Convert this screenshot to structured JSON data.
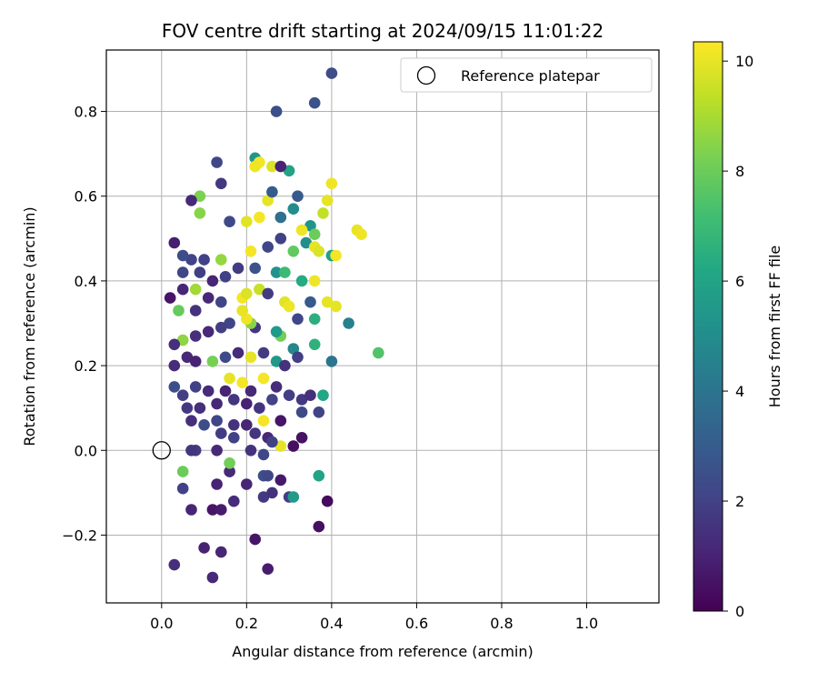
{
  "chart_data": {
    "type": "scatter",
    "title": "FOV centre drift starting at 2024/09/15 11:01:22",
    "xlabel": "Angular distance from reference (arcmin)",
    "ylabel": "Rotation from reference (arcmin)",
    "xlim": [
      -0.13,
      1.17
    ],
    "ylim": [
      -0.36,
      0.945
    ],
    "xticks": [
      0.0,
      0.2,
      0.4,
      0.6,
      0.8,
      1.0
    ],
    "xtick_labels": [
      "0.0",
      "0.2",
      "0.4",
      "0.6",
      "0.8",
      "1.0"
    ],
    "yticks": [
      -0.2,
      0.0,
      0.2,
      0.4,
      0.6,
      0.8
    ],
    "ytick_labels": [
      "−0.2",
      "0.0",
      "0.2",
      "0.4",
      "0.6",
      "0.8"
    ],
    "grid": true,
    "legend": {
      "position": "top-right",
      "entries": [
        "Reference platepar"
      ]
    },
    "reference_point": {
      "x": 0.0,
      "y": 0.0
    },
    "colorbar": {
      "label": "Hours from first FF file",
      "colormap": "viridis",
      "range": [
        0,
        10.35
      ],
      "ticks": [
        0,
        2,
        4,
        6,
        8,
        10
      ],
      "tick_labels": [
        "0",
        "2",
        "4",
        "6",
        "8",
        "10"
      ]
    },
    "points": [
      [
        0.36,
        0.82,
        2.6
      ],
      [
        0.4,
        0.89,
        2.4
      ],
      [
        0.27,
        0.8,
        2.5
      ],
      [
        0.13,
        0.68,
        2.2
      ],
      [
        0.14,
        0.63,
        1.7
      ],
      [
        0.22,
        0.69,
        5.4
      ],
      [
        0.23,
        0.68,
        10.2
      ],
      [
        0.22,
        0.67,
        10.1
      ],
      [
        0.26,
        0.67,
        9.8
      ],
      [
        0.3,
        0.66,
        6.0
      ],
      [
        0.28,
        0.67,
        1.0
      ],
      [
        0.32,
        0.6,
        2.9
      ],
      [
        0.39,
        0.59,
        10.0
      ],
      [
        0.4,
        0.63,
        10.1
      ],
      [
        0.38,
        0.56,
        9.4
      ],
      [
        0.25,
        0.59,
        10.0
      ],
      [
        0.26,
        0.61,
        3.0
      ],
      [
        0.09,
        0.6,
        8.3
      ],
      [
        0.07,
        0.59,
        1.2
      ],
      [
        0.09,
        0.56,
        8.5
      ],
      [
        0.16,
        0.54,
        2.3
      ],
      [
        0.2,
        0.54,
        9.9
      ],
      [
        0.23,
        0.55,
        10.2
      ],
      [
        0.28,
        0.55,
        3.8
      ],
      [
        0.31,
        0.57,
        5.0
      ],
      [
        0.35,
        0.53,
        5.3
      ],
      [
        0.36,
        0.51,
        8.0
      ],
      [
        0.33,
        0.52,
        10.1
      ],
      [
        0.34,
        0.49,
        5.1
      ],
      [
        0.36,
        0.48,
        10.0
      ],
      [
        0.37,
        0.47,
        9.8
      ],
      [
        0.4,
        0.46,
        5.9
      ],
      [
        0.41,
        0.46,
        10.2
      ],
      [
        0.46,
        0.52,
        10.0
      ],
      [
        0.47,
        0.51,
        10.1
      ],
      [
        0.31,
        0.47,
        7.8
      ],
      [
        0.28,
        0.5,
        2.0
      ],
      [
        0.25,
        0.48,
        2.2
      ],
      [
        0.21,
        0.47,
        10.2
      ],
      [
        0.14,
        0.45,
        8.7
      ],
      [
        0.1,
        0.45,
        2.0
      ],
      [
        0.07,
        0.45,
        2.1
      ],
      [
        0.03,
        0.49,
        0.9
      ],
      [
        0.05,
        0.46,
        2.4
      ],
      [
        0.05,
        0.42,
        2.2
      ],
      [
        0.09,
        0.42,
        1.9
      ],
      [
        0.12,
        0.4,
        1.1
      ],
      [
        0.15,
        0.41,
        2.0
      ],
      [
        0.18,
        0.43,
        1.8
      ],
      [
        0.22,
        0.43,
        2.6
      ],
      [
        0.27,
        0.42,
        5.2
      ],
      [
        0.29,
        0.42,
        7.0
      ],
      [
        0.33,
        0.4,
        6.3
      ],
      [
        0.36,
        0.4,
        10.1
      ],
      [
        0.08,
        0.38,
        8.9
      ],
      [
        0.05,
        0.38,
        1.1
      ],
      [
        0.02,
        0.36,
        0.6
      ],
      [
        0.04,
        0.33,
        7.9
      ],
      [
        0.08,
        0.33,
        1.5
      ],
      [
        0.11,
        0.36,
        1.2
      ],
      [
        0.14,
        0.35,
        2.1
      ],
      [
        0.19,
        0.36,
        10.2
      ],
      [
        0.2,
        0.37,
        9.8
      ],
      [
        0.23,
        0.38,
        9.5
      ],
      [
        0.25,
        0.37,
        1.8
      ],
      [
        0.29,
        0.35,
        9.9
      ],
      [
        0.3,
        0.34,
        10.1
      ],
      [
        0.32,
        0.31,
        2.2
      ],
      [
        0.35,
        0.35,
        2.9
      ],
      [
        0.39,
        0.35,
        10.0
      ],
      [
        0.41,
        0.34,
        10.0
      ],
      [
        0.36,
        0.31,
        6.5
      ],
      [
        0.44,
        0.3,
        4.5
      ],
      [
        0.51,
        0.23,
        7.5
      ],
      [
        0.4,
        0.21,
        4.0
      ],
      [
        0.36,
        0.25,
        6.6
      ],
      [
        0.31,
        0.24,
        4.8
      ],
      [
        0.28,
        0.27,
        8.1
      ],
      [
        0.27,
        0.28,
        5.6
      ],
      [
        0.22,
        0.29,
        1.6
      ],
      [
        0.21,
        0.3,
        8.5
      ],
      [
        0.2,
        0.31,
        10.1
      ],
      [
        0.19,
        0.33,
        10.0
      ],
      [
        0.16,
        0.3,
        2.1
      ],
      [
        0.14,
        0.29,
        1.9
      ],
      [
        0.11,
        0.28,
        1.2
      ],
      [
        0.08,
        0.27,
        1.4
      ],
      [
        0.05,
        0.26,
        8.6
      ],
      [
        0.03,
        0.25,
        1.4
      ],
      [
        0.03,
        0.2,
        1.3
      ],
      [
        0.06,
        0.22,
        1.2
      ],
      [
        0.08,
        0.21,
        1.0
      ],
      [
        0.12,
        0.21,
        8.2
      ],
      [
        0.15,
        0.22,
        2.3
      ],
      [
        0.18,
        0.23,
        1.3
      ],
      [
        0.21,
        0.22,
        10.0
      ],
      [
        0.24,
        0.23,
        1.8
      ],
      [
        0.27,
        0.21,
        5.5
      ],
      [
        0.29,
        0.2,
        1.5
      ],
      [
        0.32,
        0.22,
        1.9
      ],
      [
        0.16,
        0.17,
        10.0
      ],
      [
        0.24,
        0.17,
        10.2
      ],
      [
        0.27,
        0.15,
        1.3
      ],
      [
        0.19,
        0.16,
        10.2
      ],
      [
        0.21,
        0.14,
        1.2
      ],
      [
        0.15,
        0.14,
        1.0
      ],
      [
        0.11,
        0.14,
        1.3
      ],
      [
        0.08,
        0.15,
        2.0
      ],
      [
        0.05,
        0.13,
        1.9
      ],
      [
        0.03,
        0.15,
        2.5
      ],
      [
        0.06,
        0.1,
        1.7
      ],
      [
        0.09,
        0.1,
        1.4
      ],
      [
        0.13,
        0.11,
        1.2
      ],
      [
        0.17,
        0.12,
        1.6
      ],
      [
        0.2,
        0.11,
        1.0
      ],
      [
        0.23,
        0.1,
        1.6
      ],
      [
        0.26,
        0.12,
        2.1
      ],
      [
        0.3,
        0.13,
        1.9
      ],
      [
        0.33,
        0.12,
        1.7
      ],
      [
        0.35,
        0.13,
        1.4
      ],
      [
        0.38,
        0.13,
        6.1
      ],
      [
        0.37,
        0.09,
        2.1
      ],
      [
        0.33,
        0.09,
        2.3
      ],
      [
        0.28,
        0.07,
        0.6
      ],
      [
        0.24,
        0.07,
        10.2
      ],
      [
        0.2,
        0.06,
        1.1
      ],
      [
        0.17,
        0.06,
        1.5
      ],
      [
        0.13,
        0.07,
        2.2
      ],
      [
        0.1,
        0.06,
        2.4
      ],
      [
        0.07,
        0.07,
        1.4
      ],
      [
        0.14,
        0.04,
        1.8
      ],
      [
        0.17,
        0.03,
        2.0
      ],
      [
        0.22,
        0.04,
        1.6
      ],
      [
        0.25,
        0.03,
        1.2
      ],
      [
        0.28,
        0.01,
        10.0
      ],
      [
        0.33,
        0.03,
        0.5
      ],
      [
        0.31,
        0.01,
        0.4
      ],
      [
        0.26,
        0.02,
        2.0
      ],
      [
        0.24,
        -0.01,
        2.2
      ],
      [
        0.21,
        0.0,
        1.5
      ],
      [
        0.13,
        0.0,
        1.2
      ],
      [
        0.08,
        0.0,
        1.8
      ],
      [
        0.07,
        0.0,
        1.6
      ],
      [
        0.05,
        -0.05,
        8.0
      ],
      [
        0.05,
        -0.09,
        2.0
      ],
      [
        0.07,
        -0.14,
        1.1
      ],
      [
        0.13,
        -0.08,
        1.0
      ],
      [
        0.16,
        -0.05,
        1.2
      ],
      [
        0.17,
        -0.12,
        1.3
      ],
      [
        0.2,
        -0.08,
        1.1
      ],
      [
        0.24,
        -0.06,
        2.5
      ],
      [
        0.25,
        -0.06,
        2.2
      ],
      [
        0.24,
        -0.11,
        1.7
      ],
      [
        0.26,
        -0.1,
        1.5
      ],
      [
        0.28,
        -0.07,
        0.7
      ],
      [
        0.3,
        -0.11,
        1.9
      ],
      [
        0.31,
        -0.11,
        5.6
      ],
      [
        0.37,
        -0.06,
        6.0
      ],
      [
        0.39,
        -0.12,
        0.3
      ],
      [
        0.37,
        -0.18,
        0.4
      ],
      [
        0.12,
        -0.14,
        0.6
      ],
      [
        0.14,
        -0.14,
        0.8
      ],
      [
        0.12,
        -0.3,
        1.2
      ],
      [
        0.1,
        -0.23,
        1.0
      ],
      [
        0.14,
        -0.24,
        1.1
      ],
      [
        0.03,
        -0.27,
        1.4
      ],
      [
        0.22,
        -0.21,
        0.6
      ],
      [
        0.25,
        -0.28,
        0.8
      ],
      [
        0.16,
        -0.03,
        8.1
      ]
    ]
  }
}
